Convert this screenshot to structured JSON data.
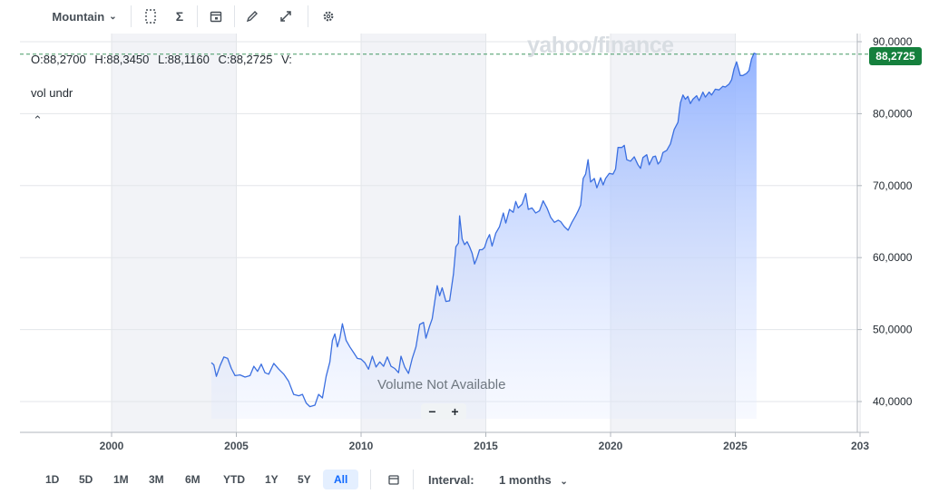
{
  "toolbar": {
    "chart_type_label": "Mountain",
    "icons": [
      "compare-icon",
      "indicators-icon",
      "events-icon",
      "draw-icon",
      "fullscreen-icon",
      "settings-icon"
    ]
  },
  "ohlc": {
    "open": "O:88,2700",
    "high": "H:88,3450",
    "low": "L:88,1160",
    "close": "C:88,2725",
    "volume": "V:"
  },
  "indicator_label": "vol undr",
  "watermark": "yahoo/finance",
  "volume_message": "Volume Not Available",
  "zoom": {
    "minus": "−",
    "plus": "+"
  },
  "last_price_tag": "88,2725",
  "ranges": [
    "1D",
    "5D",
    "1M",
    "3M",
    "6M",
    "YTD",
    "1Y",
    "5Y",
    "All"
  ],
  "active_range": "All",
  "interval": {
    "label": "Interval:",
    "value": "1 months"
  },
  "colors": {
    "line": "#3b6fe0",
    "fill_top": "#8fb0ff",
    "last_price": "#15803d",
    "band": "#f2f3f7"
  },
  "chart_data": {
    "type": "area",
    "x_ticks": [
      "2000",
      "2005",
      "2010",
      "2015",
      "2020",
      "2025",
      "203"
    ],
    "y_ticks": [
      "40,0000",
      "50,0000",
      "60,0000",
      "70,0000",
      "80,0000",
      "90,0000"
    ],
    "xlim": [
      1996.0,
      2030.0
    ],
    "ylim": [
      36.5,
      90.5
    ],
    "grid": true,
    "series": [
      {
        "points": [
          [
            2004.0,
            45.4
          ],
          [
            2004.1,
            45.1
          ],
          [
            2004.2,
            43.5
          ],
          [
            2004.35,
            45.0
          ],
          [
            2004.5,
            46.2
          ],
          [
            2004.65,
            46.0
          ],
          [
            2004.8,
            44.6
          ],
          [
            2004.95,
            43.6
          ],
          [
            2005.15,
            43.7
          ],
          [
            2005.35,
            43.4
          ],
          [
            2005.55,
            43.6
          ],
          [
            2005.7,
            44.9
          ],
          [
            2005.85,
            44.2
          ],
          [
            2006.0,
            45.2
          ],
          [
            2006.15,
            44.0
          ],
          [
            2006.3,
            43.8
          ],
          [
            2006.5,
            45.3
          ],
          [
            2006.7,
            44.5
          ],
          [
            2006.9,
            43.8
          ],
          [
            2007.1,
            42.8
          ],
          [
            2007.3,
            41.0
          ],
          [
            2007.5,
            40.8
          ],
          [
            2007.65,
            41.0
          ],
          [
            2007.8,
            39.8
          ],
          [
            2007.95,
            39.3
          ],
          [
            2008.15,
            39.5
          ],
          [
            2008.3,
            41.0
          ],
          [
            2008.45,
            40.5
          ],
          [
            2008.6,
            43.5
          ],
          [
            2008.75,
            45.5
          ],
          [
            2008.85,
            48.5
          ],
          [
            2008.95,
            49.4
          ],
          [
            2009.05,
            47.6
          ],
          [
            2009.15,
            48.8
          ],
          [
            2009.25,
            50.8
          ],
          [
            2009.4,
            48.5
          ],
          [
            2009.55,
            47.6
          ],
          [
            2009.7,
            46.8
          ],
          [
            2009.85,
            46.0
          ],
          [
            2010.0,
            45.9
          ],
          [
            2010.15,
            45.4
          ],
          [
            2010.3,
            44.5
          ],
          [
            2010.45,
            46.3
          ],
          [
            2010.6,
            44.8
          ],
          [
            2010.75,
            45.5
          ],
          [
            2010.9,
            44.9
          ],
          [
            2011.05,
            46.2
          ],
          [
            2011.2,
            44.9
          ],
          [
            2011.35,
            44.6
          ],
          [
            2011.5,
            44.0
          ],
          [
            2011.6,
            46.3
          ],
          [
            2011.75,
            44.8
          ],
          [
            2011.9,
            43.9
          ],
          [
            2012.05,
            46.0
          ],
          [
            2012.2,
            47.6
          ],
          [
            2012.35,
            50.7
          ],
          [
            2012.5,
            51.0
          ],
          [
            2012.6,
            48.8
          ],
          [
            2012.75,
            50.5
          ],
          [
            2012.85,
            51.5
          ],
          [
            2012.95,
            53.8
          ],
          [
            2013.05,
            56.1
          ],
          [
            2013.15,
            54.7
          ],
          [
            2013.25,
            55.8
          ],
          [
            2013.4,
            53.9
          ],
          [
            2013.55,
            54.0
          ],
          [
            2013.7,
            57.7
          ],
          [
            2013.8,
            61.5
          ],
          [
            2013.9,
            62.0
          ],
          [
            2013.95,
            65.8
          ],
          [
            2014.05,
            62.6
          ],
          [
            2014.15,
            61.8
          ],
          [
            2014.25,
            62.2
          ],
          [
            2014.35,
            61.5
          ],
          [
            2014.45,
            60.6
          ],
          [
            2014.55,
            59.1
          ],
          [
            2014.65,
            60.0
          ],
          [
            2014.75,
            61.1
          ],
          [
            2014.85,
            61.1
          ],
          [
            2014.95,
            61.4
          ],
          [
            2015.05,
            62.5
          ],
          [
            2015.15,
            63.2
          ],
          [
            2015.25,
            61.6
          ],
          [
            2015.4,
            63.4
          ],
          [
            2015.55,
            64.3
          ],
          [
            2015.7,
            66.2
          ],
          [
            2015.8,
            64.8
          ],
          [
            2015.95,
            66.7
          ],
          [
            2016.1,
            66.3
          ],
          [
            2016.2,
            67.8
          ],
          [
            2016.3,
            66.9
          ],
          [
            2016.45,
            67.4
          ],
          [
            2016.6,
            68.9
          ],
          [
            2016.7,
            66.7
          ],
          [
            2016.85,
            66.9
          ],
          [
            2017.0,
            66.2
          ],
          [
            2017.15,
            66.5
          ],
          [
            2017.3,
            67.9
          ],
          [
            2017.45,
            66.9
          ],
          [
            2017.6,
            65.6
          ],
          [
            2017.75,
            64.9
          ],
          [
            2017.9,
            65.2
          ],
          [
            2018.0,
            65.0
          ],
          [
            2018.15,
            64.3
          ],
          [
            2018.3,
            63.8
          ],
          [
            2018.45,
            64.9
          ],
          [
            2018.6,
            65.8
          ],
          [
            2018.7,
            66.5
          ],
          [
            2018.8,
            67.3
          ],
          [
            2018.9,
            71.0
          ],
          [
            2019.0,
            71.6
          ],
          [
            2019.1,
            73.6
          ],
          [
            2019.2,
            70.5
          ],
          [
            2019.35,
            71.0
          ],
          [
            2019.45,
            69.7
          ],
          [
            2019.6,
            71.1
          ],
          [
            2019.7,
            70.1
          ],
          [
            2019.8,
            71.0
          ],
          [
            2019.95,
            71.7
          ],
          [
            2020.1,
            71.6
          ],
          [
            2020.2,
            72.3
          ],
          [
            2020.3,
            75.3
          ],
          [
            2020.45,
            75.3
          ],
          [
            2020.55,
            75.6
          ],
          [
            2020.65,
            73.6
          ],
          [
            2020.8,
            73.4
          ],
          [
            2020.95,
            74.0
          ],
          [
            2021.1,
            72.9
          ],
          [
            2021.2,
            72.4
          ],
          [
            2021.3,
            73.9
          ],
          [
            2021.45,
            74.3
          ],
          [
            2021.55,
            72.9
          ],
          [
            2021.7,
            74.0
          ],
          [
            2021.8,
            74.1
          ],
          [
            2021.9,
            73.0
          ],
          [
            2022.0,
            73.4
          ],
          [
            2022.1,
            74.6
          ],
          [
            2022.25,
            74.9
          ],
          [
            2022.4,
            75.8
          ],
          [
            2022.55,
            77.8
          ],
          [
            2022.7,
            78.8
          ],
          [
            2022.8,
            81.5
          ],
          [
            2022.9,
            82.6
          ],
          [
            2023.0,
            82.0
          ],
          [
            2023.1,
            82.4
          ],
          [
            2023.2,
            81.4
          ],
          [
            2023.3,
            82.0
          ],
          [
            2023.45,
            82.5
          ],
          [
            2023.55,
            81.8
          ],
          [
            2023.7,
            83.0
          ],
          [
            2023.8,
            82.3
          ],
          [
            2023.95,
            83.0
          ],
          [
            2024.05,
            82.6
          ],
          [
            2024.2,
            83.4
          ],
          [
            2024.35,
            83.3
          ],
          [
            2024.5,
            83.8
          ],
          [
            2024.6,
            83.7
          ],
          [
            2024.75,
            84.1
          ],
          [
            2024.85,
            84.7
          ],
          [
            2024.95,
            86.2
          ],
          [
            2025.05,
            87.2
          ],
          [
            2025.2,
            85.3
          ],
          [
            2025.3,
            85.3
          ],
          [
            2025.45,
            85.6
          ],
          [
            2025.55,
            86.0
          ],
          [
            2025.65,
            87.6
          ],
          [
            2025.75,
            88.4
          ],
          [
            2025.85,
            88.27
          ]
        ]
      }
    ]
  }
}
